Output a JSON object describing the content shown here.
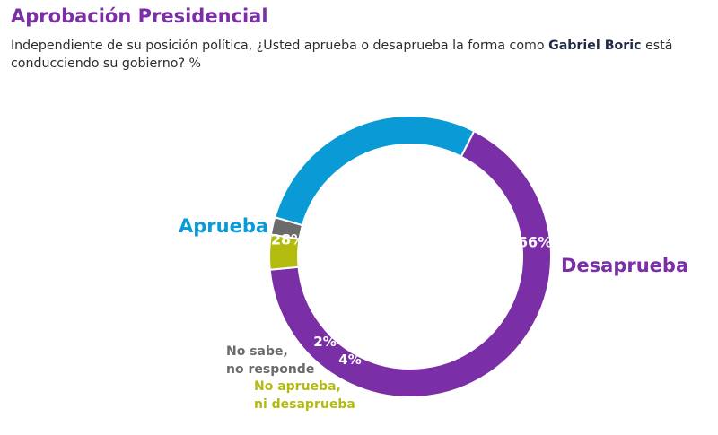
{
  "header": {
    "title": "Aprobación Presidencial",
    "subtitle_before": "Independiente de su posición política, ¿Usted aprueba o desaprueba la forma como ",
    "subtitle_bold": "Gabriel Boric",
    "subtitle_after": " está conducciendo su gobierno? %"
  },
  "colors": {
    "title": "#7b2fa6",
    "aprueba": "#0a9ad6",
    "desaprueba": "#7b2fa6",
    "no_sabe": "#6b6b6b",
    "ni": "#b3bb0f",
    "pct_text": "#ffffff"
  },
  "chart_data": {
    "type": "pie",
    "variant": "donut",
    "title": "Aprobación Presidencial",
    "unit": "%",
    "slices": [
      {
        "key": "desaprueba",
        "label": "Desaprueba",
        "value": 66,
        "display": "66%"
      },
      {
        "key": "ni",
        "label": "No aprueba, ni desaprueba",
        "label_lines": [
          "No aprueba,",
          "ni desaprueba"
        ],
        "value": 4,
        "display": "4%"
      },
      {
        "key": "no_sabe",
        "label": "No sabe, no responde",
        "label_lines": [
          "No sabe,",
          "no responde"
        ],
        "value": 2,
        "display": "2%"
      },
      {
        "key": "aprueba",
        "label": "Aprueba",
        "value": 28,
        "display": "28%"
      }
    ],
    "start_angle_deg": 27,
    "direction": "clockwise"
  }
}
